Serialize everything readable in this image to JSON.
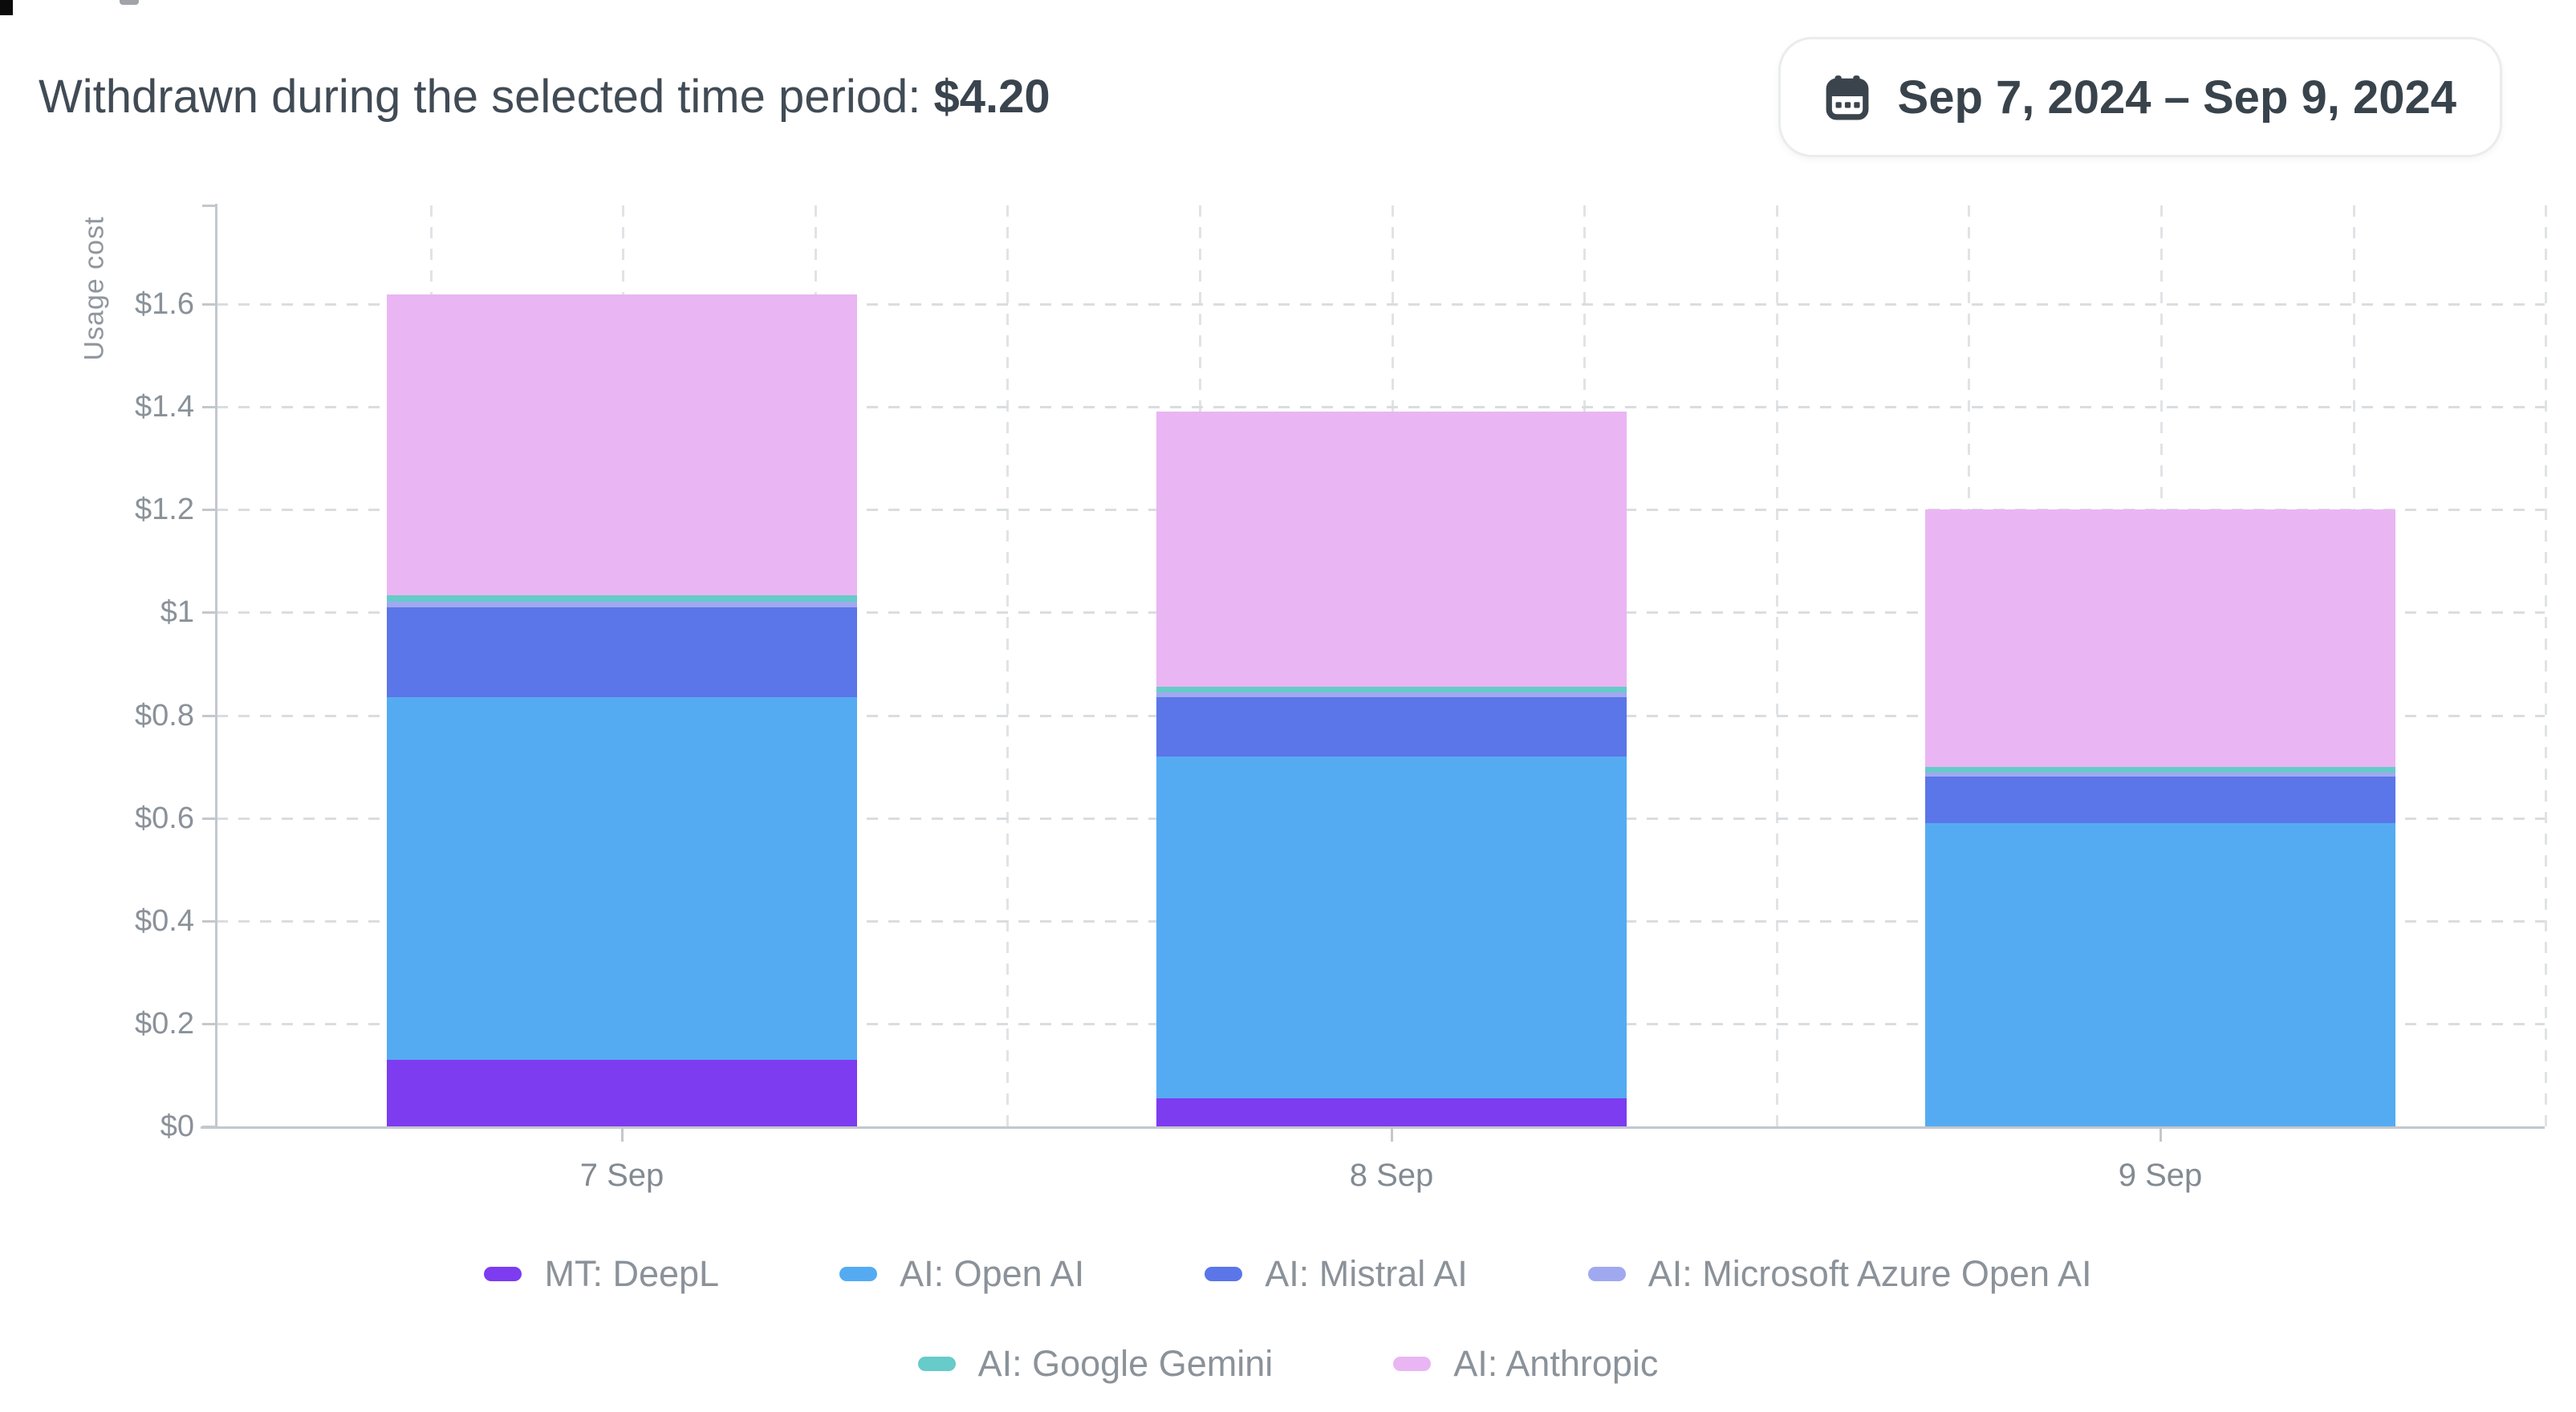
{
  "header": {
    "title_prefix": "Withdrawn during the selected time period:",
    "amount": "$4.20",
    "date_range_label": "Sep 7, 2024 – Sep 9, 2024",
    "date_range_icon": "calendar-icon"
  },
  "chart_data": {
    "type": "bar",
    "stacked": true,
    "ylabel": "Usage cost",
    "xlabel": "",
    "categories": [
      "7 Sep",
      "8 Sep",
      "9 Sep"
    ],
    "series": [
      {
        "name": "MT: DeepL",
        "color": "#7d3cf0",
        "values": [
          0.13,
          0.055,
          0.0
        ]
      },
      {
        "name": "AI: Open AI",
        "color": "#55abf2",
        "values": [
          0.705,
          0.665,
          0.59
        ]
      },
      {
        "name": "AI: Mistral AI",
        "color": "#5b76e8",
        "values": [
          0.175,
          0.115,
          0.09
        ]
      },
      {
        "name": "AI: Microsoft Azure Open AI",
        "color": "#a0a9f0",
        "values": [
          0.011,
          0.01,
          0.009
        ]
      },
      {
        "name": "AI: Google Gemini",
        "color": "#66cbc9",
        "values": [
          0.013,
          0.011,
          0.011
        ]
      },
      {
        "name": "AI: Anthropic",
        "color": "#eab5f3",
        "values": [
          0.585,
          0.535,
          0.5
        ]
      }
    ],
    "totals": [
      1.619,
      1.391,
      1.2
    ],
    "y_ticks": [
      {
        "value": 0,
        "label": "$0"
      },
      {
        "value": 0.2,
        "label": "$0.2"
      },
      {
        "value": 0.4,
        "label": "$0.4"
      },
      {
        "value": 0.6,
        "label": "$0.6"
      },
      {
        "value": 0.8,
        "label": "$0.8"
      },
      {
        "value": 1,
        "label": "$1"
      },
      {
        "value": 1.2,
        "label": "$1.2"
      },
      {
        "value": 1.4,
        "label": "$1.4"
      },
      {
        "value": 1.6,
        "label": "$1.6"
      }
    ],
    "ylim": [
      0,
      1.79
    ],
    "grid": "dashed",
    "legend_position": "bottom",
    "legend_rows": [
      4,
      2
    ]
  }
}
